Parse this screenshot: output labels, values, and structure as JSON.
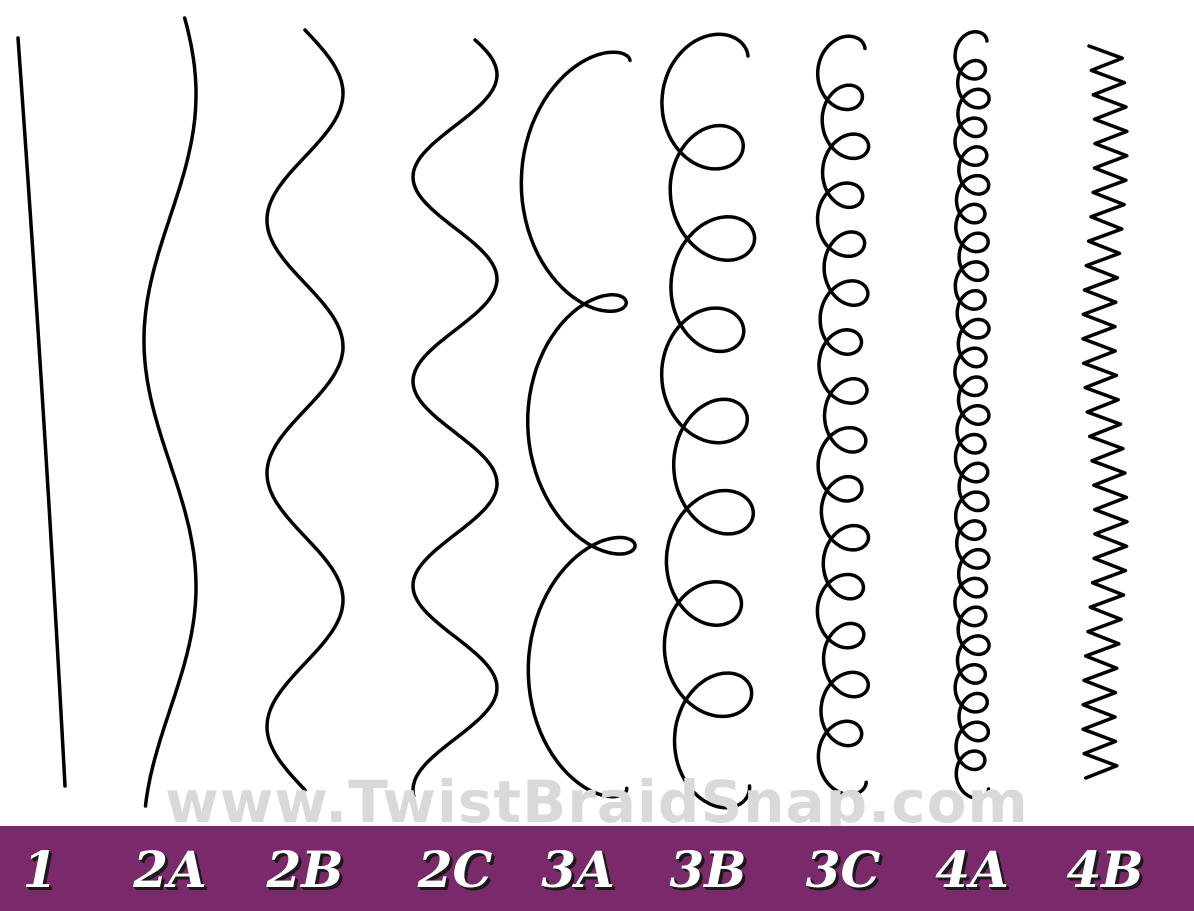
{
  "watermark": {
    "text": "www.TwistBraidSnap.com",
    "color": "#d9d9d9"
  },
  "label_bar": {
    "color": "#7a2a6a"
  },
  "stroke_color": "#000000",
  "hair_types": [
    {
      "id": "1",
      "label": "1",
      "icon": "straight-strand"
    },
    {
      "id": "2A",
      "label": "2A",
      "icon": "gentle-wave-strand"
    },
    {
      "id": "2B",
      "label": "2B",
      "icon": "wave-strand"
    },
    {
      "id": "2C",
      "label": "2C",
      "icon": "deep-wave-strand"
    },
    {
      "id": "3A",
      "label": "3A",
      "icon": "loose-curl-strand"
    },
    {
      "id": "3B",
      "label": "3B",
      "icon": "curl-strand"
    },
    {
      "id": "3C",
      "label": "3C",
      "icon": "tight-curl-strand"
    },
    {
      "id": "4A",
      "label": "4A",
      "icon": "coil-strand"
    },
    {
      "id": "4B",
      "label": "4B",
      "icon": "zigzag-strand"
    }
  ]
}
